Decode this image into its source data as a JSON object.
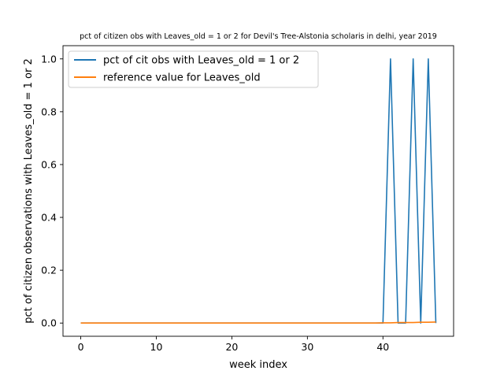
{
  "chart_data": {
    "type": "line",
    "title": "pct of citizen obs with Leaves_old = 1 or 2 for Devil's Tree-Alstonia scholaris in delhi, year 2019",
    "xlabel": "week index",
    "ylabel": "pct of citizen observations with Leaves_old = 1 or 2",
    "xlim": [
      -2.35,
      49.35
    ],
    "ylim": [
      -0.05,
      1.05
    ],
    "xticks": [
      0,
      10,
      20,
      30,
      40
    ],
    "yticks": [
      0.0,
      0.2,
      0.4,
      0.6,
      0.8,
      1.0
    ],
    "xtick_labels": [
      "0",
      "10",
      "20",
      "30",
      "40"
    ],
    "ytick_labels": [
      "0.0",
      "0.2",
      "0.4",
      "0.6",
      "0.8",
      "1.0"
    ],
    "grid": false,
    "legend_position": "top-left",
    "series": [
      {
        "name": "pct of cit obs with Leaves_old = 1 or 2",
        "color": "#1f77b4",
        "x": [
          0,
          1,
          2,
          3,
          4,
          5,
          6,
          7,
          8,
          9,
          10,
          11,
          12,
          13,
          14,
          15,
          16,
          17,
          18,
          19,
          20,
          21,
          22,
          23,
          24,
          25,
          26,
          27,
          28,
          29,
          30,
          31,
          32,
          33,
          34,
          35,
          36,
          37,
          38,
          39,
          40,
          41,
          42,
          43,
          44,
          45,
          46,
          47
        ],
        "y": [
          0,
          0,
          0,
          0,
          0,
          0,
          0,
          0,
          0,
          0,
          0,
          0,
          0,
          0,
          0,
          0,
          0,
          0,
          0,
          0,
          0,
          0,
          0,
          0,
          0,
          0,
          0,
          0,
          0,
          0,
          0,
          0,
          0,
          0,
          0,
          0,
          0,
          0,
          0,
          0,
          0,
          1,
          0,
          0,
          1,
          0,
          1,
          0
        ]
      },
      {
        "name": "reference value for Leaves_old",
        "color": "#ff7f0e",
        "x": [
          0,
          1,
          2,
          3,
          4,
          5,
          6,
          7,
          8,
          9,
          10,
          11,
          12,
          13,
          14,
          15,
          16,
          17,
          18,
          19,
          20,
          21,
          22,
          23,
          24,
          25,
          26,
          27,
          28,
          29,
          30,
          31,
          32,
          33,
          34,
          35,
          36,
          37,
          38,
          39,
          40,
          41,
          42,
          43,
          44,
          45,
          46,
          47
        ],
        "y": [
          0,
          0,
          0,
          0,
          0,
          0,
          0,
          0,
          0,
          0,
          0,
          0,
          0,
          0,
          0,
          0,
          0,
          0,
          0,
          0,
          0,
          0,
          0,
          0,
          0,
          0,
          0,
          0,
          0,
          0,
          0,
          0,
          0,
          0,
          0,
          0,
          0,
          0,
          0,
          0,
          0.001,
          0.001,
          0.002,
          0.002,
          0.002,
          0.003,
          0.003,
          0.004
        ]
      }
    ]
  }
}
